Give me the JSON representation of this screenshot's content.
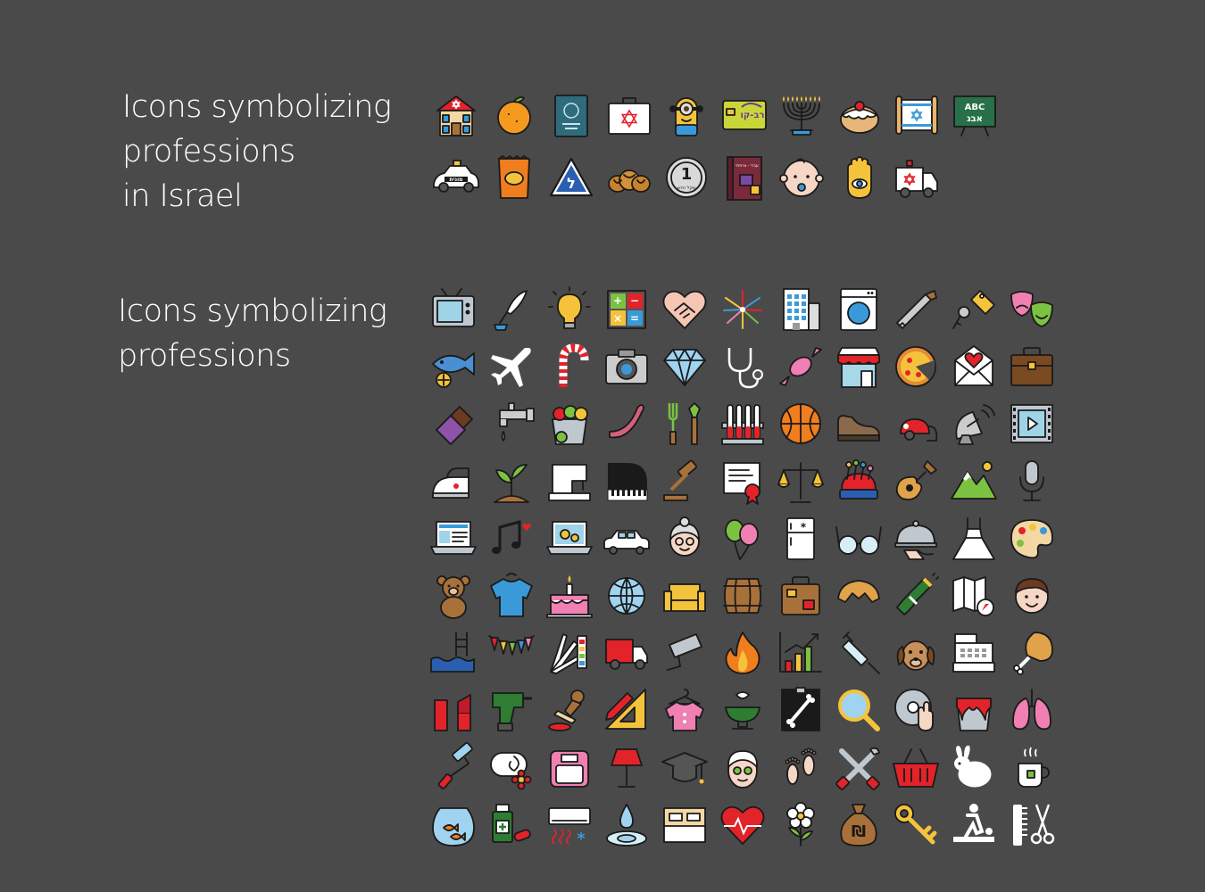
{
  "israel_section": {
    "title_lines": [
      "Icons symbolizing",
      "professions",
      "in Israel"
    ],
    "icons": [
      "synagogue-house-icon",
      "orange-icon",
      "israeli-passport-icon",
      "first-aid-kit-icon",
      "minion-character-icon",
      "bus-ticket-card-icon",
      "menorah-icon",
      "sufganiya-doughnut-icon",
      "torah-scroll-flag-icon",
      "hebrew-chalkboard-icon",
      "taxi-car-icon",
      "bamba-snack-bag-icon",
      "road-sign-icon",
      "challah-bread-icon",
      "shekel-coin-icon",
      "dictionary-book-icon",
      "baby-face-icon",
      "hamsa-hand-icon",
      "ambulance-icon"
    ],
    "labels": {
      "chalkboard_top": "ABC",
      "chalkboard_bottom": "אבג",
      "taxi_text": "מונית",
      "coin_number": "1",
      "coin_text": "שקל חדש",
      "book_text": "עברי - צרפתי"
    }
  },
  "general_section": {
    "title_lines": [
      "Icons symbolizing",
      "professions"
    ],
    "icons": [
      "tv-icon",
      "quill-ink-icon",
      "light-bulb-icon",
      "calculator-icon",
      "handshake-heart-icon",
      "fireworks-icon",
      "office-building-icon",
      "washing-machine-icon",
      "handsaw-icon",
      "key-tag-icon",
      "theater-masks-icon",
      "fish-lemon-icon",
      "airplane-icon",
      "candy-cane-icon",
      "camera-icon",
      "diamond-icon",
      "stethoscope-icon",
      "candy-icon",
      "storefront-icon",
      "pizza-icon",
      "love-letter-icon",
      "briefcase-icon",
      "chocolate-bar-icon",
      "water-tap-icon",
      "fruit-bucket-icon",
      "sausage-icon",
      "garden-tools-icon",
      "test-tubes-icon",
      "basketball-icon",
      "shoe-icon",
      "vacuum-cleaner-icon",
      "satellite-dish-icon",
      "film-strip-icon",
      "clothes-iron-icon",
      "plant-sprout-icon",
      "sewing-machine-icon",
      "grand-piano-icon",
      "gavel-icon",
      "certificate-icon",
      "scales-justice-icon",
      "pincushion-icon",
      "guitar-icon",
      "mountains-icon",
      "microphone-icon",
      "web-laptop-icon",
      "music-notes-icon",
      "laptop-settings-icon",
      "limousine-icon",
      "grandmother-icon",
      "balloons-icon",
      "refrigerator-icon",
      "glasses-icon",
      "serving-cloche-icon",
      "wedding-dress-icon",
      "paint-palette-icon",
      "teddy-bear-icon",
      "sweater-icon",
      "birthday-cake-icon",
      "globe-icon",
      "sofa-icon",
      "barrel-icon",
      "suitcase-icon",
      "croissant-icon",
      "champagne-icon",
      "map-compass-icon",
      "boy-face-icon",
      "swimming-pool-icon",
      "bunting-flags-icon",
      "color-swatches-icon",
      "delivery-truck-icon",
      "security-camera-icon",
      "fire-icon",
      "growth-chart-icon",
      "syringe-icon",
      "dog-icon",
      "cash-register-icon",
      "chicken-leg-icon",
      "lipstick-icon",
      "power-drill-icon",
      "rubber-stamp-icon",
      "ruler-pencil-icon",
      "blouse-hanger-icon",
      "pharmacy-bowl-icon",
      "x-ray-icon",
      "magnifier-icon",
      "disc-hand-icon",
      "paint-bucket-icon",
      "lungs-icon",
      "paint-roller-icon",
      "towel-flower-icon",
      "weight-scale-icon",
      "floor-lamp-icon",
      "graduation-cap-icon",
      "spa-face-mask-icon",
      "footprints-icon",
      "tools-wrench-icon",
      "shopping-basket-icon",
      "rabbit-icon",
      "tea-cup-icon",
      "fishbowl-icon",
      "medicine-pills-icon",
      "air-conditioner-icon",
      "water-drop-icon",
      "bed-icon",
      "heartbeat-icon",
      "flower-icon",
      "money-bag-icon",
      "key-icon",
      "massage-icon",
      "comb-scissors-icon"
    ],
    "labels": {
      "money_symbol": "₪",
      "fridge_mark": "*"
    }
  },
  "colors": {
    "background": "#4a4a4a",
    "title_text": "#ffffff",
    "outline": "#1a1a1a",
    "red": "#e2232a",
    "yellow": "#f5c33b",
    "blue": "#3a9ad9",
    "green": "#7cc242",
    "brown": "#a9713a",
    "pink": "#f07fb2",
    "teal": "#2f6f7a"
  }
}
